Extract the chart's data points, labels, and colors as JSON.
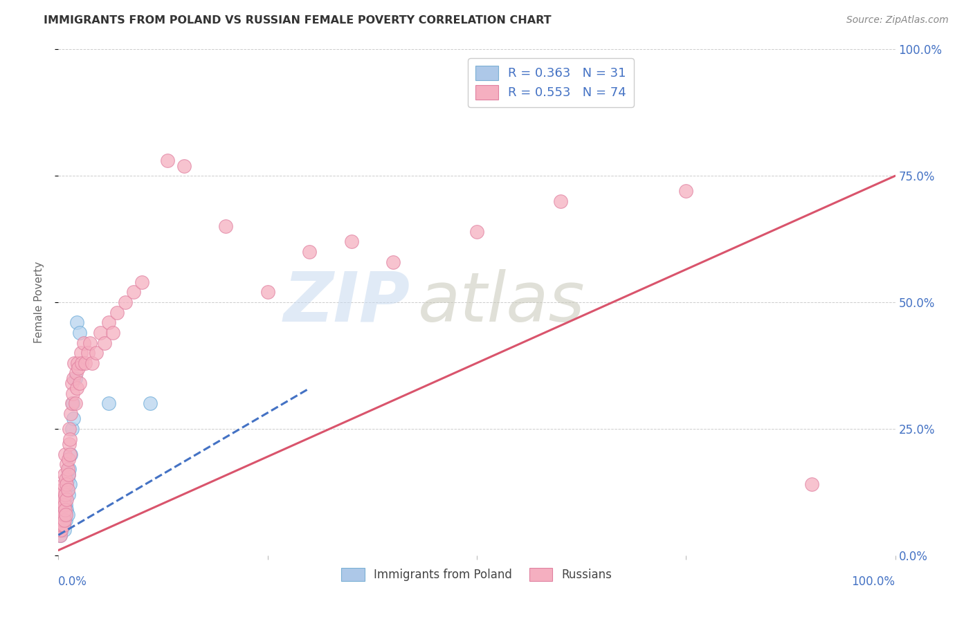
{
  "title": "IMMIGRANTS FROM POLAND VS RUSSIAN FEMALE POVERTY CORRELATION CHART",
  "source": "Source: ZipAtlas.com",
  "ylabel": "Female Poverty",
  "ytick_vals": [
    0.0,
    0.25,
    0.5,
    0.75,
    1.0
  ],
  "ytick_labels": [
    "0.0%",
    "25.0%",
    "50.0%",
    "75.0%",
    "100.0%"
  ],
  "xtick_labels_show": [
    "0.0%",
    "100.0%"
  ],
  "legend_top": [
    {
      "label_r": "R = 0.363",
      "label_n": "N = 31",
      "fc": "#adc8e8",
      "ec": "#7aafd4"
    },
    {
      "label_r": "R = 0.553",
      "label_n": "N = 74",
      "fc": "#f5afc0",
      "ec": "#e080a0"
    }
  ],
  "legend_bottom": [
    {
      "label": "Immigrants from Poland",
      "fc": "#adc8e8",
      "ec": "#7aafd4"
    },
    {
      "label": "Russians",
      "fc": "#f5afc0",
      "ec": "#e080a0"
    }
  ],
  "scatter_poland": {
    "fc": "#b8d4ee",
    "ec": "#6aaad8",
    "x": [
      0.002,
      0.003,
      0.004,
      0.004,
      0.005,
      0.005,
      0.006,
      0.006,
      0.007,
      0.007,
      0.008,
      0.008,
      0.009,
      0.009,
      0.01,
      0.01,
      0.011,
      0.011,
      0.012,
      0.012,
      0.013,
      0.014,
      0.015,
      0.016,
      0.017,
      0.018,
      0.02,
      0.022,
      0.025,
      0.06,
      0.11
    ],
    "y": [
      0.04,
      0.06,
      0.05,
      0.08,
      0.07,
      0.1,
      0.06,
      0.09,
      0.05,
      0.11,
      0.08,
      0.12,
      0.07,
      0.1,
      0.09,
      0.13,
      0.08,
      0.15,
      0.12,
      0.16,
      0.17,
      0.14,
      0.2,
      0.25,
      0.3,
      0.27,
      0.35,
      0.46,
      0.44,
      0.3,
      0.3
    ]
  },
  "scatter_russian": {
    "fc": "#f5afc0",
    "ec": "#e080a0",
    "x": [
      0.001,
      0.002,
      0.002,
      0.003,
      0.003,
      0.003,
      0.004,
      0.004,
      0.004,
      0.005,
      0.005,
      0.005,
      0.006,
      0.006,
      0.006,
      0.006,
      0.007,
      0.007,
      0.007,
      0.008,
      0.008,
      0.008,
      0.009,
      0.009,
      0.01,
      0.01,
      0.01,
      0.011,
      0.011,
      0.012,
      0.012,
      0.013,
      0.013,
      0.014,
      0.014,
      0.015,
      0.016,
      0.016,
      0.017,
      0.018,
      0.019,
      0.02,
      0.021,
      0.022,
      0.023,
      0.024,
      0.025,
      0.027,
      0.028,
      0.03,
      0.032,
      0.035,
      0.038,
      0.04,
      0.045,
      0.05,
      0.055,
      0.06,
      0.065,
      0.07,
      0.08,
      0.09,
      0.1,
      0.13,
      0.15,
      0.2,
      0.25,
      0.3,
      0.35,
      0.4,
      0.5,
      0.6,
      0.75,
      0.9
    ],
    "y": [
      0.05,
      0.04,
      0.07,
      0.05,
      0.08,
      0.1,
      0.06,
      0.09,
      0.12,
      0.07,
      0.1,
      0.13,
      0.06,
      0.08,
      0.11,
      0.14,
      0.07,
      0.1,
      0.16,
      0.09,
      0.12,
      0.2,
      0.08,
      0.15,
      0.11,
      0.14,
      0.18,
      0.13,
      0.17,
      0.16,
      0.19,
      0.22,
      0.25,
      0.2,
      0.23,
      0.28,
      0.3,
      0.34,
      0.32,
      0.35,
      0.38,
      0.3,
      0.36,
      0.33,
      0.38,
      0.37,
      0.34,
      0.4,
      0.38,
      0.42,
      0.38,
      0.4,
      0.42,
      0.38,
      0.4,
      0.44,
      0.42,
      0.46,
      0.44,
      0.48,
      0.5,
      0.52,
      0.54,
      0.78,
      0.77,
      0.65,
      0.52,
      0.6,
      0.62,
      0.58,
      0.64,
      0.7,
      0.72,
      0.14
    ]
  },
  "trendline_poland": {
    "color": "#4472c4",
    "linestyle": "--",
    "x": [
      0.0,
      0.3
    ],
    "y": [
      0.04,
      0.33
    ]
  },
  "trendline_russian": {
    "color": "#d9546c",
    "linestyle": "-",
    "x": [
      0.0,
      1.0
    ],
    "y": [
      0.01,
      0.75
    ]
  },
  "watermark_zip": "ZIP",
  "watermark_atlas": "atlas",
  "watermark_color_zip": "#c8daf0",
  "watermark_color_atlas": "#c8c8b8",
  "background_color": "#ffffff",
  "grid_color": "#cccccc",
  "title_color": "#333333",
  "source_color": "#888888",
  "axis_label_color": "#4472c4",
  "ylabel_color": "#666666"
}
